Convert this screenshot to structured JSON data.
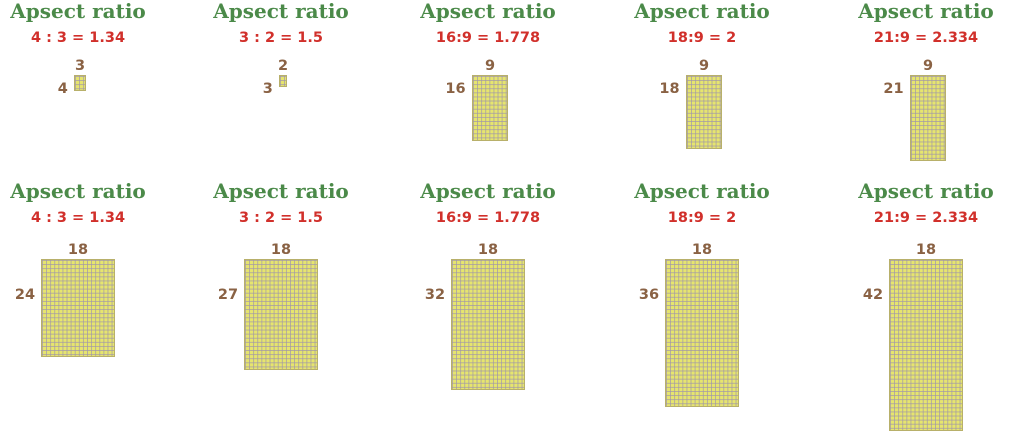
{
  "diagram": {
    "heading": "Apsect ratio",
    "rows": [
      {
        "items": [
          {
            "ratio_label": "4 : 3 = 1.34",
            "cols": 3,
            "rows": 4,
            "top_label": "3",
            "side_label": "4"
          },
          {
            "ratio_label": "3 : 2 = 1.5",
            "cols": 2,
            "rows": 3,
            "top_label": "2",
            "side_label": "3"
          },
          {
            "ratio_label": "16:9 = 1.778",
            "cols": 9,
            "rows": 16,
            "top_label": "9",
            "side_label": "16"
          },
          {
            "ratio_label": "18:9 = 2",
            "cols": 9,
            "rows": 18,
            "top_label": "9",
            "side_label": "18"
          },
          {
            "ratio_label": "21:9 = 2.334",
            "cols": 9,
            "rows": 21,
            "top_label": "9",
            "side_label": "21"
          }
        ]
      },
      {
        "items": [
          {
            "ratio_label": "4 : 3 = 1.34",
            "cols": 18,
            "rows": 24,
            "top_label": "18",
            "side_label": "24"
          },
          {
            "ratio_label": "3 : 2 = 1.5",
            "cols": 18,
            "rows": 27,
            "top_label": "18",
            "side_label": "27"
          },
          {
            "ratio_label": "16:9 = 1.778",
            "cols": 18,
            "rows": 32,
            "top_label": "18",
            "side_label": "32"
          },
          {
            "ratio_label": "18:9 = 2",
            "cols": 18,
            "rows": 36,
            "top_label": "18",
            "side_label": "36"
          },
          {
            "ratio_label": "21:9 = 2.334",
            "cols": 18,
            "rows": 42,
            "top_label": "18",
            "side_label": "42"
          }
        ]
      }
    ]
  },
  "colors": {
    "heading": "#4b8a49",
    "ratio_label": "#d1302b",
    "dimension_label": "#8a6244",
    "grid_fill": "#e6e56e",
    "grid_line": "#a096aa"
  }
}
